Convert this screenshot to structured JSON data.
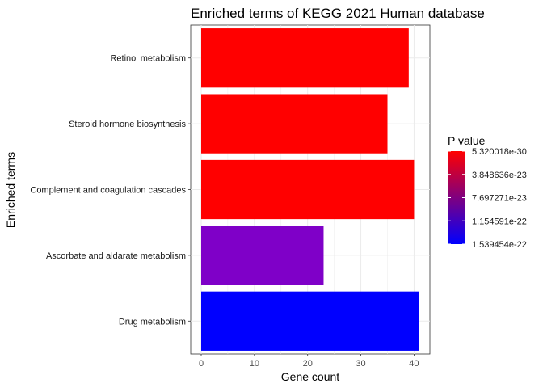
{
  "chart_data": {
    "type": "bar",
    "orientation": "horizontal",
    "title": "Enriched terms of KEGG 2021 Human database",
    "xlabel": "Gene count",
    "ylabel": "Enriched terms",
    "xlim": [
      0,
      41
    ],
    "x_ticks": [
      0,
      10,
      20,
      30,
      40
    ],
    "grid": true,
    "categories": [
      "Retinol metabolism",
      "Steroid hormone biosynthesis",
      "Complement and coagulation cascades",
      "Ascorbate and aldarate metabolism",
      "Drug metabolism"
    ],
    "values": [
      39,
      35,
      40,
      23,
      41
    ],
    "bar_colors": [
      "#FF0000",
      "#FF0000",
      "#FF0000",
      "#7F00C8",
      "#0000FF"
    ],
    "legend": {
      "title": "P value",
      "placement": "right",
      "labels": [
        "5.320018e-30",
        "3.848636e-23",
        "7.697271e-23",
        "1.154591e-22",
        "1.539454e-22"
      ],
      "color_high": "#FF0000",
      "color_low": "#0000FF"
    }
  }
}
